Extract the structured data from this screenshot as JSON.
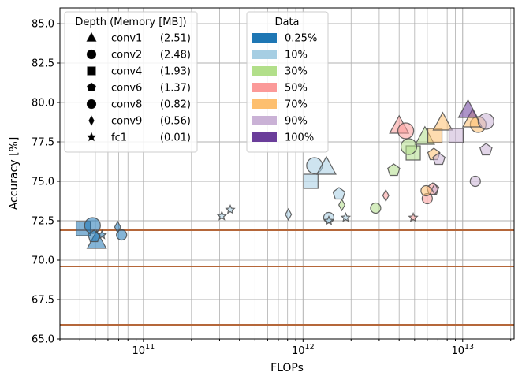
{
  "chart_data": {
    "type": "scatter",
    "xlabel": "FLOPs",
    "ylabel": "Accuracy [%]",
    "xscale": "log",
    "xlim": [
      30000000000.0,
      21000000000000.0
    ],
    "ylim": [
      65.0,
      86.0
    ],
    "grid": true,
    "x_tick_labels": [
      {
        "value": 100000000000.0,
        "base": "10",
        "exp": "11"
      },
      {
        "value": 1000000000000.0,
        "base": "10",
        "exp": "12"
      },
      {
        "value": 10000000000000.0,
        "base": "10",
        "exp": "13"
      }
    ],
    "y_ticks": [
      65.0,
      67.5,
      70.0,
      72.5,
      75.0,
      77.5,
      80.0,
      82.5,
      85.0
    ],
    "y_tick_labels": [
      "65.0",
      "67.5",
      "70.0",
      "72.5",
      "75.0",
      "77.5",
      "80.0",
      "82.5",
      "85.0"
    ],
    "hlines": [
      {
        "y": 71.9,
        "color": "#b5673a"
      },
      {
        "y": 69.6,
        "color": "#b5673a"
      },
      {
        "y": 65.9,
        "color": "#b5673a"
      }
    ],
    "legend_depth": {
      "title": "Depth (Memory [MB])",
      "position": "top-left",
      "entries": [
        {
          "marker": "triangle",
          "name": "conv1",
          "memory": "(2.51)"
        },
        {
          "marker": "circle",
          "name": "conv2",
          "memory": "(2.48)"
        },
        {
          "marker": "square",
          "name": "conv4",
          "memory": "(1.93)"
        },
        {
          "marker": "pentagon",
          "name": "conv6",
          "memory": "(1.37)"
        },
        {
          "marker": "circle",
          "name": "conv8",
          "memory": "(0.82)"
        },
        {
          "marker": "diamond",
          "name": "conv9",
          "memory": "(0.56)"
        },
        {
          "marker": "star",
          "name": "fc1",
          "memory": "(0.01)"
        }
      ]
    },
    "legend_data": {
      "title": "Data",
      "position": "top-center",
      "entries": [
        {
          "label": "0.25%",
          "color": "#1f77b4"
        },
        {
          "label": "10%",
          "color": "#a6cee3"
        },
        {
          "label": "30%",
          "color": "#b2df8a"
        },
        {
          "label": "50%",
          "color": "#fb9a99"
        },
        {
          "label": "70%",
          "color": "#fdbf6f"
        },
        {
          "label": "90%",
          "color": "#cab2d6"
        },
        {
          "label": "100%",
          "color": "#6a3d9a"
        }
      ]
    },
    "points": [
      {
        "x": 42000000000.0,
        "y": 72.0,
        "marker": "square",
        "data": "0.25%"
      },
      {
        "x": 48000000000.0,
        "y": 72.2,
        "marker": "circle",
        "data": "0.25%"
      },
      {
        "x": 51000000000.0,
        "y": 71.2,
        "marker": "triangle",
        "data": "0.25%"
      },
      {
        "x": 49000000000.0,
        "y": 71.5,
        "marker": "pentagon",
        "data": "0.25%"
      },
      {
        "x": 73000000000.0,
        "y": 71.6,
        "marker": "circle",
        "data": "0.25%"
      },
      {
        "x": 69000000000.0,
        "y": 72.1,
        "marker": "diamond",
        "data": "0.25%"
      },
      {
        "x": 55000000000.0,
        "y": 71.6,
        "marker": "star",
        "data": "0.25%"
      },
      {
        "x": 1120000000000.0,
        "y": 75.0,
        "marker": "square",
        "data": "10%"
      },
      {
        "x": 1180000000000.0,
        "y": 76.0,
        "marker": "circle",
        "data": "10%"
      },
      {
        "x": 1400000000000.0,
        "y": 75.9,
        "marker": "triangle",
        "data": "10%"
      },
      {
        "x": 1680000000000.0,
        "y": 74.2,
        "marker": "pentagon",
        "data": "10%"
      },
      {
        "x": 1450000000000.0,
        "y": 72.7,
        "marker": "circle",
        "data": "10%"
      },
      {
        "x": 810000000000.0,
        "y": 72.9,
        "marker": "diamond",
        "data": "10%"
      },
      {
        "x": 310000000000.0,
        "y": 72.8,
        "marker": "star",
        "data": "10%"
      },
      {
        "x": 350000000000.0,
        "y": 73.2,
        "marker": "star",
        "data": "10%"
      },
      {
        "x": 1450000000000.0,
        "y": 72.5,
        "marker": "star",
        "data": "10%"
      },
      {
        "x": 1850000000000.0,
        "y": 72.7,
        "marker": "star",
        "data": "10%"
      },
      {
        "x": 4900000000000.0,
        "y": 76.8,
        "marker": "square",
        "data": "30%"
      },
      {
        "x": 4600000000000.0,
        "y": 77.2,
        "marker": "circle",
        "data": "30%"
      },
      {
        "x": 5800000000000.0,
        "y": 77.8,
        "marker": "triangle",
        "data": "30%"
      },
      {
        "x": 3700000000000.0,
        "y": 75.7,
        "marker": "pentagon",
        "data": "30%"
      },
      {
        "x": 2850000000000.0,
        "y": 73.3,
        "marker": "circle",
        "data": "30%"
      },
      {
        "x": 1750000000000.0,
        "y": 73.5,
        "marker": "diamond",
        "data": "30%"
      },
      {
        "x": 4000000000000.0,
        "y": 78.5,
        "marker": "triangle",
        "data": "50%"
      },
      {
        "x": 4400000000000.0,
        "y": 78.2,
        "marker": "circle",
        "data": "50%"
      },
      {
        "x": 6500000000000.0,
        "y": 74.5,
        "marker": "pentagon",
        "data": "50%"
      },
      {
        "x": 6000000000000.0,
        "y": 73.9,
        "marker": "circle",
        "data": "50%"
      },
      {
        "x": 3300000000000.0,
        "y": 74.1,
        "marker": "diamond",
        "data": "50%"
      },
      {
        "x": 4900000000000.0,
        "y": 72.7,
        "marker": "star",
        "data": "50%"
      },
      {
        "x": 6700000000000.0,
        "y": 77.9,
        "marker": "square",
        "data": "70%"
      },
      {
        "x": 7500000000000.0,
        "y": 78.7,
        "marker": "triangle",
        "data": "70%"
      },
      {
        "x": 12500000000000.0,
        "y": 78.6,
        "marker": "circle",
        "data": "70%"
      },
      {
        "x": 11500000000000.0,
        "y": 78.9,
        "marker": "triangle",
        "data": "70%"
      },
      {
        "x": 6600000000000.0,
        "y": 76.7,
        "marker": "pentagon",
        "data": "70%"
      },
      {
        "x": 5900000000000.0,
        "y": 74.4,
        "marker": "circle",
        "data": "70%"
      },
      {
        "x": 9100000000000.0,
        "y": 77.9,
        "marker": "square",
        "data": "90%"
      },
      {
        "x": 14000000000000.0,
        "y": 78.8,
        "marker": "circle",
        "data": "90%"
      },
      {
        "x": 14000000000000.0,
        "y": 77.0,
        "marker": "pentagon",
        "data": "90%"
      },
      {
        "x": 12000000000000.0,
        "y": 75.0,
        "marker": "circle",
        "data": "90%"
      },
      {
        "x": 7100000000000.0,
        "y": 76.4,
        "marker": "pentagon",
        "data": "90%"
      },
      {
        "x": 6700000000000.0,
        "y": 74.5,
        "marker": "diamond",
        "data": "90%"
      },
      {
        "x": 10800000000000.0,
        "y": 79.5,
        "marker": "triangle",
        "data": "100%"
      }
    ]
  }
}
